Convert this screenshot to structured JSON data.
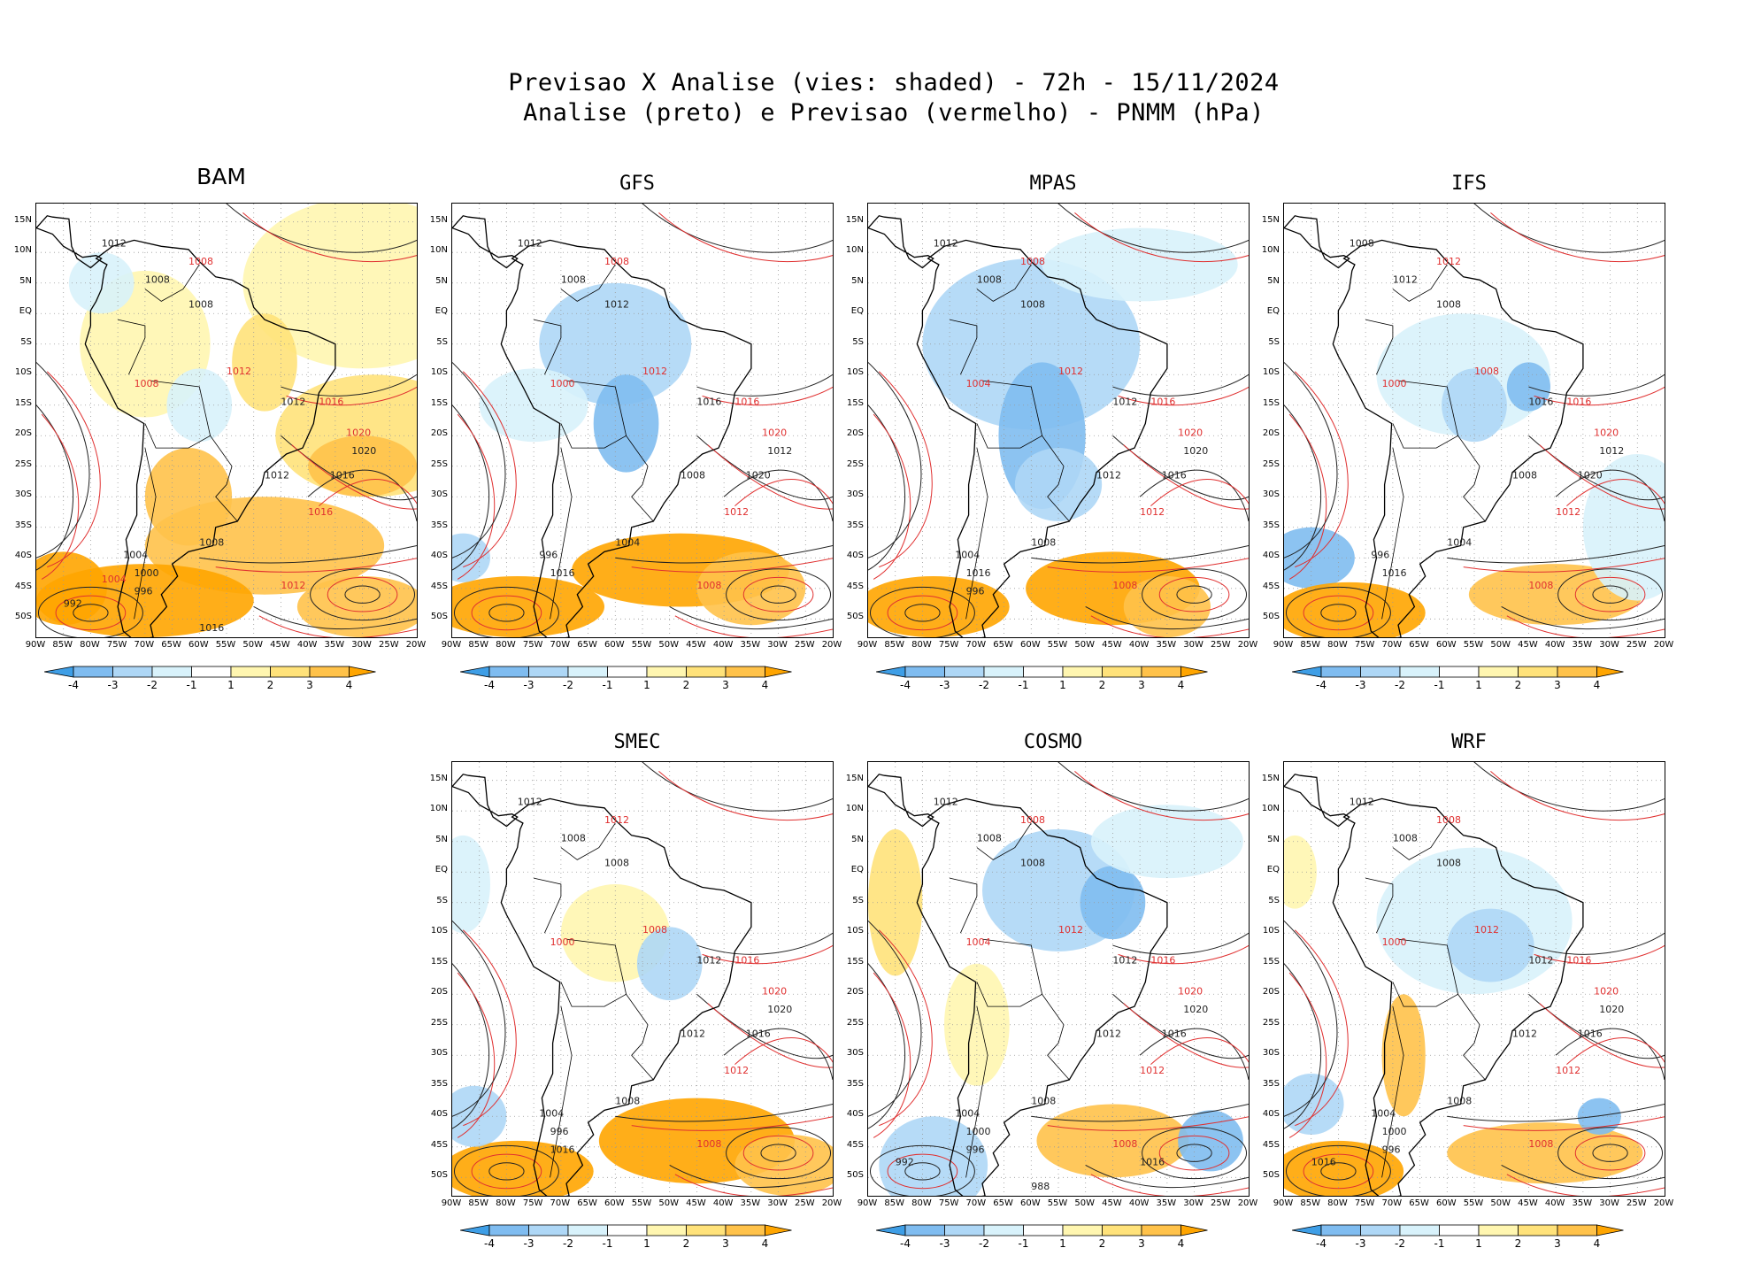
{
  "figure": {
    "title_line1": "Previsao X Analise (vies: shaded) - 72h - 15/11/2024",
    "title_line2": "Analise (preto) e Previsao (vermelho) - PNMM (hPa)"
  },
  "colors": {
    "neg4": "#3e9ee6",
    "neg3": "#7fbcf0",
    "neg2": "#aed7f6",
    "neg1": "#d8f2fb",
    "pos1": "#fff6b0",
    "pos2": "#ffe27a",
    "pos3": "#ffc24a",
    "pos4": "#ffa500",
    "analysis_line": "#222222",
    "forecast_line": "#e03030",
    "grid": "#999999"
  },
  "axes": {
    "lat_labels": [
      "15N",
      "10N",
      "5N",
      "EQ",
      "5S",
      "10S",
      "15S",
      "20S",
      "25S",
      "30S",
      "35S",
      "40S",
      "45S",
      "50S"
    ],
    "lon_labels": [
      "90W",
      "85W",
      "80W",
      "75W",
      "70W",
      "65W",
      "60W",
      "55W",
      "50W",
      "45W",
      "40W",
      "35W",
      "30W",
      "25W",
      "20W"
    ]
  },
  "colorbar": {
    "labels": [
      "-4",
      "-3",
      "-2",
      "-1",
      "1",
      "2",
      "3",
      "4"
    ]
  },
  "panels": [
    {
      "name": "BAM",
      "analysis_labels": [
        "1012",
        "1008",
        "1008",
        "1012",
        "1016",
        "1020",
        "1012",
        "1008",
        "1004",
        "1000",
        "996",
        "992",
        "1016"
      ],
      "forecast_labels": [
        "1008",
        "1012",
        "1016",
        "1020",
        "1016",
        "1012",
        "1008",
        "1004"
      ]
    },
    {
      "name": "GFS",
      "analysis_labels": [
        "1012",
        "1008",
        "1012",
        "1016",
        "1020",
        "1012",
        "1008",
        "1004",
        "996",
        "1016"
      ],
      "forecast_labels": [
        "1008",
        "1012",
        "1016",
        "1020",
        "1012",
        "1008",
        "1000"
      ]
    },
    {
      "name": "MPAS",
      "analysis_labels": [
        "1012",
        "1008",
        "1008",
        "1012",
        "1016",
        "1020",
        "1012",
        "1008",
        "1004",
        "1016",
        "996"
      ],
      "forecast_labels": [
        "1008",
        "1012",
        "1016",
        "1020",
        "1012",
        "1008",
        "1004"
      ]
    },
    {
      "name": "IFS",
      "analysis_labels": [
        "1008",
        "1012",
        "1008",
        "1016",
        "1020",
        "1012",
        "1008",
        "1004",
        "996",
        "1016"
      ],
      "forecast_labels": [
        "1012",
        "1008",
        "1016",
        "1020",
        "1012",
        "1008",
        "1000"
      ]
    },
    {
      "name": "SMEC",
      "analysis_labels": [
        "1012",
        "1008",
        "1008",
        "1012",
        "1016",
        "1020",
        "1012",
        "1008",
        "1004",
        "996",
        "1016"
      ],
      "forecast_labels": [
        "1012",
        "1008",
        "1016",
        "1020",
        "1012",
        "1008",
        "1000"
      ]
    },
    {
      "name": "COSMO",
      "analysis_labels": [
        "1012",
        "1008",
        "1008",
        "1012",
        "1016",
        "1020",
        "1012",
        "1008",
        "1004",
        "1000",
        "996",
        "992",
        "988",
        "1016"
      ],
      "forecast_labels": [
        "1008",
        "1012",
        "1016",
        "1020",
        "1012",
        "1008",
        "1004"
      ]
    },
    {
      "name": "WRF",
      "analysis_labels": [
        "1012",
        "1008",
        "1008",
        "1012",
        "1016",
        "1020",
        "1012",
        "1008",
        "1004",
        "1000",
        "996",
        "1016"
      ],
      "forecast_labels": [
        "1008",
        "1012",
        "1016",
        "1020",
        "1012",
        "1008",
        "1000"
      ]
    }
  ]
}
